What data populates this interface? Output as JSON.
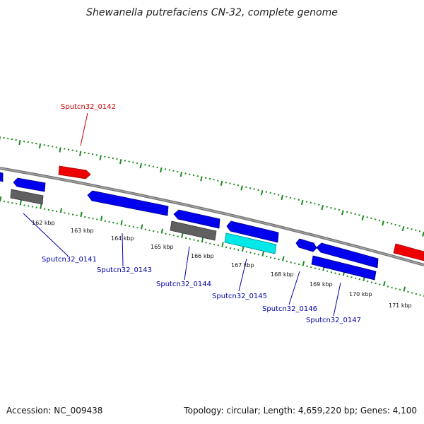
{
  "title": "Shewanella putrefaciens CN-32, complete genome",
  "footer": {
    "accession": "Accession: NC_009438",
    "stats": "Topology: circular; Length: 4,659,220 bp; Genes: 4,100"
  },
  "colors": {
    "backbone": "#808080",
    "forward_cds": "#0000ee",
    "reverse_cds": "#0000ee",
    "gray_feature": "#606060",
    "cyan_feature": "#00e8e8",
    "red_feature": "#ee0000",
    "tick": "#1a8a1a",
    "label_blue": "#0000aa",
    "label_red": "#cc0000"
  },
  "ruler_labels": [
    "162 kbp",
    "163 kbp",
    "164 kbp",
    "165 kbp",
    "166 kbp",
    "167 kbp",
    "168 kbp",
    "169 kbp",
    "170 kbp",
    "171 kbp"
  ],
  "gene_labels": [
    {
      "name": "Sputcn32_0142",
      "color": "red"
    },
    {
      "name": "Sputcn32_0141",
      "color": "blue"
    },
    {
      "name": "Sputcn32_0143",
      "color": "blue"
    },
    {
      "name": "Sputcn32_0144",
      "color": "blue"
    },
    {
      "name": "Sputcn32_0145",
      "color": "blue"
    },
    {
      "name": "Sputcn32_0146",
      "color": "blue"
    },
    {
      "name": "Sputcn32_0147",
      "color": "blue"
    }
  ]
}
